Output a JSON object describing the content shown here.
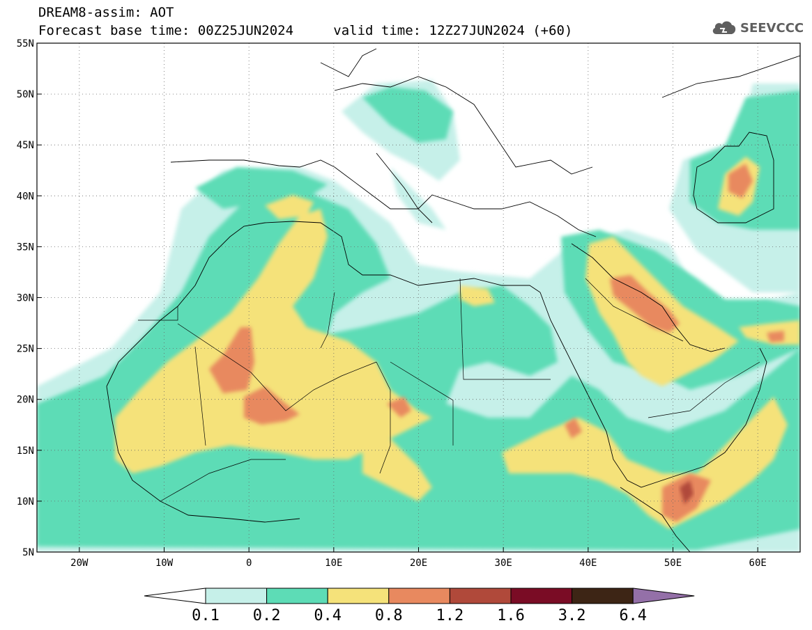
{
  "header": {
    "title": "DREAM8-assim: AOT",
    "forecast_line": "Forecast base time: 00Z25JUN2024",
    "valid_line": "valid time: 12Z27JUN2024 (+60)",
    "logo_text": "SEEVCCC",
    "logo_icon": "cloud-icon"
  },
  "map": {
    "lon_range": [
      -25,
      65
    ],
    "lat_range": [
      5,
      55
    ],
    "lat_ticks": [
      {
        "value": 55,
        "label": "55N"
      },
      {
        "value": 50,
        "label": "50N"
      },
      {
        "value": 45,
        "label": "45N"
      },
      {
        "value": 40,
        "label": "40N"
      },
      {
        "value": 35,
        "label": "35N"
      },
      {
        "value": 30,
        "label": "30N"
      },
      {
        "value": 25,
        "label": "25N"
      },
      {
        "value": 20,
        "label": "20N"
      },
      {
        "value": 15,
        "label": "15N"
      },
      {
        "value": 10,
        "label": "10N"
      },
      {
        "value": 5,
        "label": "5N"
      }
    ],
    "lon_ticks": [
      {
        "value": -20,
        "label": "20W"
      },
      {
        "value": -10,
        "label": "10W"
      },
      {
        "value": 0,
        "label": "0"
      },
      {
        "value": 10,
        "label": "10E"
      },
      {
        "value": 20,
        "label": "20E"
      },
      {
        "value": 30,
        "label": "30E"
      },
      {
        "value": 40,
        "label": "40E"
      },
      {
        "value": 50,
        "label": "50E"
      },
      {
        "value": 60,
        "label": "60E"
      }
    ],
    "grid": "dotted",
    "field": "AOT"
  },
  "colorbar": {
    "levels": [
      "0.1",
      "0.2",
      "0.4",
      "0.8",
      "1.2",
      "1.6",
      "3.2",
      "6.4"
    ],
    "colors": [
      "#c6f0e9",
      "#5ddcb6",
      "#f5e27a",
      "#e8895f",
      "#b0493a",
      "#7a0c25",
      "#3d2515",
      "#9470a8"
    ]
  }
}
